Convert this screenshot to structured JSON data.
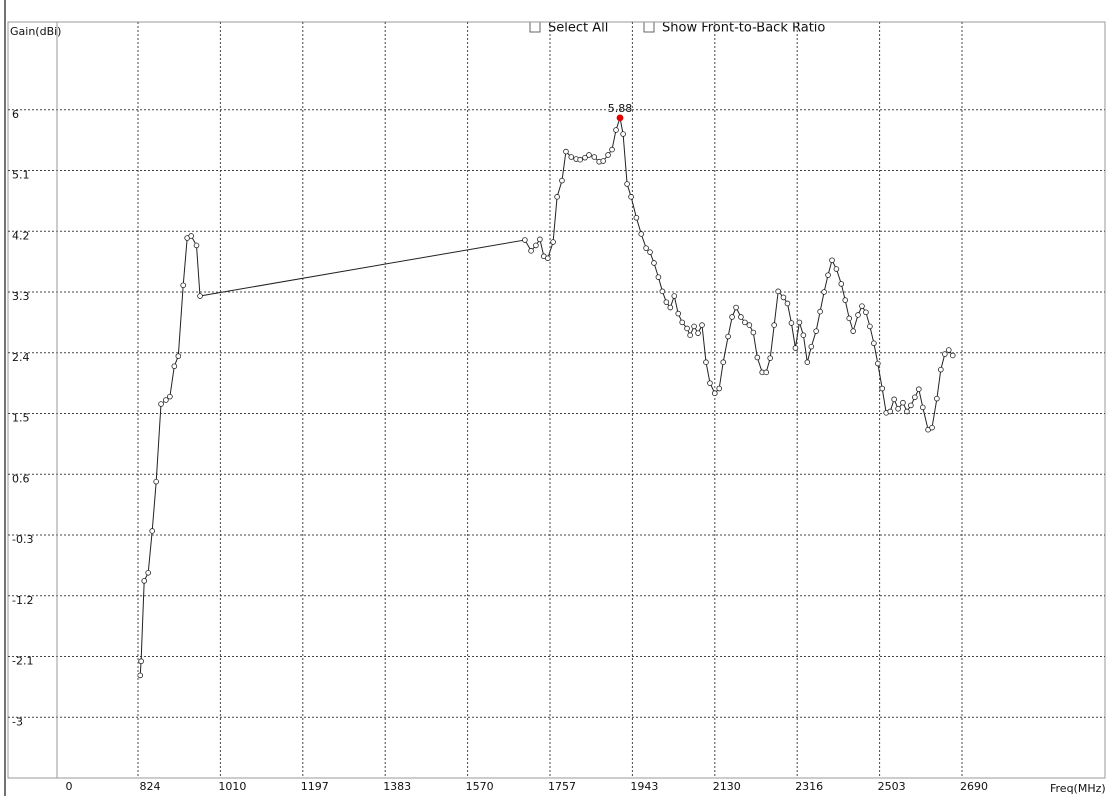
{
  "controls": [
    "Select All",
    "Show Front-to-Back Ratio"
  ],
  "chart_data": {
    "type": "line",
    "y_label": "Gain(dBi)",
    "x_label": "Freq(MHz)",
    "color": "#222222",
    "highlight_color": "#e00000",
    "annotation": {
      "label": "5.88"
    },
    "grid": true,
    "xlim": [
      0,
      3014
    ],
    "xticks": [
      0,
      824,
      1010,
      1197,
      1383,
      1570,
      1757,
      1943,
      2130,
      2316,
      2503,
      2690
    ],
    "ylim": [
      -3.9,
      7.3
    ],
    "yticks": [
      6,
      5.1,
      4.2,
      3.3,
      2.4,
      1.5,
      0.6,
      -0.3,
      -1.2,
      -2.1,
      -3
    ],
    "x": [
      829,
      831,
      838,
      847,
      856,
      865,
      876,
      887,
      896,
      906,
      915,
      926,
      935,
      944,
      956,
      964,
      1700,
      1714,
      1725,
      1734,
      1743,
      1752,
      1764,
      1773,
      1784,
      1793,
      1805,
      1816,
      1825,
      1836,
      1845,
      1857,
      1868,
      1877,
      1888,
      1897,
      1906,
      1915,
      1922,
      1931,
      1940,
      1952,
      1963,
      1974,
      1983,
      1992,
      2002,
      2011,
      2020,
      2029,
      2038,
      2047,
      2056,
      2067,
      2074,
      2083,
      2092,
      2101,
      2110,
      2119,
      2130,
      2140,
      2149,
      2160,
      2169,
      2178,
      2189,
      2198,
      2208,
      2217,
      2226,
      2237,
      2246,
      2255,
      2264,
      2273,
      2285,
      2294,
      2303,
      2312,
      2321,
      2330,
      2339,
      2348,
      2359,
      2368,
      2377,
      2386,
      2395,
      2405,
      2416,
      2425,
      2434,
      2443,
      2454,
      2463,
      2472,
      2481,
      2490,
      2499,
      2509,
      2518,
      2527,
      2536,
      2545,
      2556,
      2565,
      2574,
      2583,
      2592,
      2601,
      2613,
      2622,
      2633,
      2642,
      2651,
      2660,
      2669
    ],
    "values": [
      -2.38,
      -2.17,
      -0.98,
      -0.86,
      -0.24,
      0.49,
      1.64,
      1.7,
      1.75,
      2.2,
      2.35,
      3.4,
      4.1,
      4.13,
      3.99,
      3.24,
      4.07,
      3.91,
      3.99,
      4.08,
      3.83,
      3.8,
      4.04,
      4.71,
      4.95,
      5.38,
      5.3,
      5.27,
      5.26,
      5.29,
      5.33,
      5.3,
      5.23,
      5.24,
      5.33,
      5.41,
      5.7,
      5.88,
      5.64,
      4.9,
      4.71,
      4.4,
      4.16,
      3.95,
      3.89,
      3.73,
      3.52,
      3.31,
      3.15,
      3.07,
      3.24,
      2.98,
      2.85,
      2.76,
      2.66,
      2.79,
      2.69,
      2.81,
      2.26,
      1.95,
      1.8,
      1.87,
      2.26,
      2.64,
      2.93,
      3.07,
      2.93,
      2.85,
      2.81,
      2.7,
      2.33,
      2.11,
      2.11,
      2.32,
      2.81,
      3.31,
      3.22,
      3.13,
      2.84,
      2.47,
      2.85,
      2.66,
      2.26,
      2.49,
      2.72,
      3.01,
      3.3,
      3.55,
      3.77,
      3.64,
      3.42,
      3.18,
      2.91,
      2.72,
      2.96,
      3.09,
      3.0,
      2.79,
      2.54,
      2.24,
      1.87,
      1.51,
      1.53,
      1.71,
      1.57,
      1.66,
      1.53,
      1.62,
      1.74,
      1.86,
      1.59,
      1.26,
      1.29,
      1.72,
      2.15,
      2.38,
      2.44,
      2.36
    ]
  }
}
